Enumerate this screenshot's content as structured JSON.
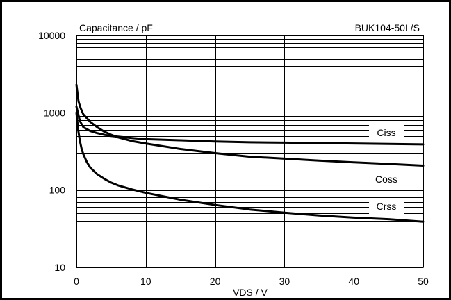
{
  "chart_data": {
    "type": "line",
    "title": "BUK104-50L/S",
    "ylabel": "Capacitance / pF",
    "xlabel": "VDS / V",
    "xlim": [
      0,
      50
    ],
    "ylim": [
      10,
      10000
    ],
    "yscale": "log",
    "grid": true,
    "x_ticks": [
      "0",
      "10",
      "20",
      "30",
      "40",
      "50"
    ],
    "y_ticks": [
      "10",
      "100",
      "1000",
      "10000"
    ],
    "series": [
      {
        "name": "Ciss",
        "x": [
          0,
          0.5,
          1,
          2,
          3,
          4,
          5,
          6,
          8,
          10,
          15,
          20,
          25,
          30,
          35,
          40,
          45,
          50
        ],
        "y": [
          1200,
          780,
          650,
          580,
          545,
          520,
          500,
          490,
          470,
          455,
          440,
          425,
          415,
          410,
          405,
          400,
          395,
          390
        ]
      },
      {
        "name": "Coss",
        "x": [
          0,
          0.3,
          0.6,
          1,
          2,
          3,
          4,
          5,
          6,
          8,
          10,
          15,
          20,
          25,
          30,
          35,
          40,
          45,
          50
        ],
        "y": [
          2300,
          1400,
          1150,
          950,
          760,
          650,
          570,
          520,
          480,
          430,
          400,
          340,
          300,
          270,
          255,
          240,
          228,
          218,
          207
        ]
      },
      {
        "name": "Crss",
        "x": [
          0,
          0.25,
          0.5,
          0.75,
          1,
          1.5,
          2,
          3,
          4,
          5,
          6,
          8,
          10,
          15,
          20,
          25,
          30,
          35,
          40,
          45,
          50
        ],
        "y": [
          1000,
          600,
          430,
          340,
          290,
          230,
          195,
          160,
          140,
          125,
          115,
          102,
          92,
          75,
          64,
          56,
          51,
          47,
          44,
          42,
          39
        ]
      }
    ]
  }
}
